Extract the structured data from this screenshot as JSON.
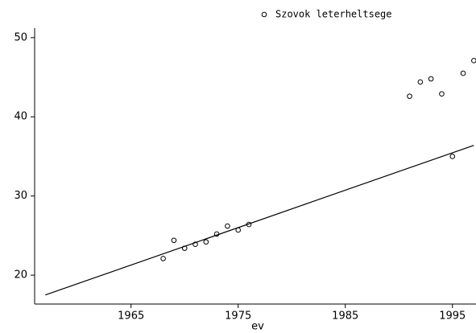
{
  "chart_data": {
    "type": "scatter",
    "x_label": "ev",
    "series": [
      {
        "name": "Szovok leterheltsege",
        "color": "#000000",
        "mode": "markers",
        "x": [
          1968,
          1969,
          1970,
          1971,
          1972,
          1973,
          1974,
          1975,
          1976,
          1991,
          1992,
          1993,
          1994,
          1995,
          1996,
          1997
        ],
        "values": [
          22.1,
          24.4,
          23.4,
          23.9,
          24.2,
          25.2,
          26.2,
          25.7,
          26.4,
          42.6,
          44.4,
          44.8,
          42.9,
          35.0,
          45.5,
          47.1
        ]
      },
      {
        "color": "#000000",
        "mode": "line",
        "x": [
          1957,
          1997
        ],
        "values": [
          17.5,
          36.4
        ]
      }
    ],
    "xlim": [
      1956,
      1997.2
    ],
    "ylim": [
      16.35,
      51.2
    ],
    "xticks": [
      1965,
      1975,
      1985,
      1995
    ],
    "yticks": [
      20,
      30,
      40,
      50
    ],
    "legend": "top"
  }
}
